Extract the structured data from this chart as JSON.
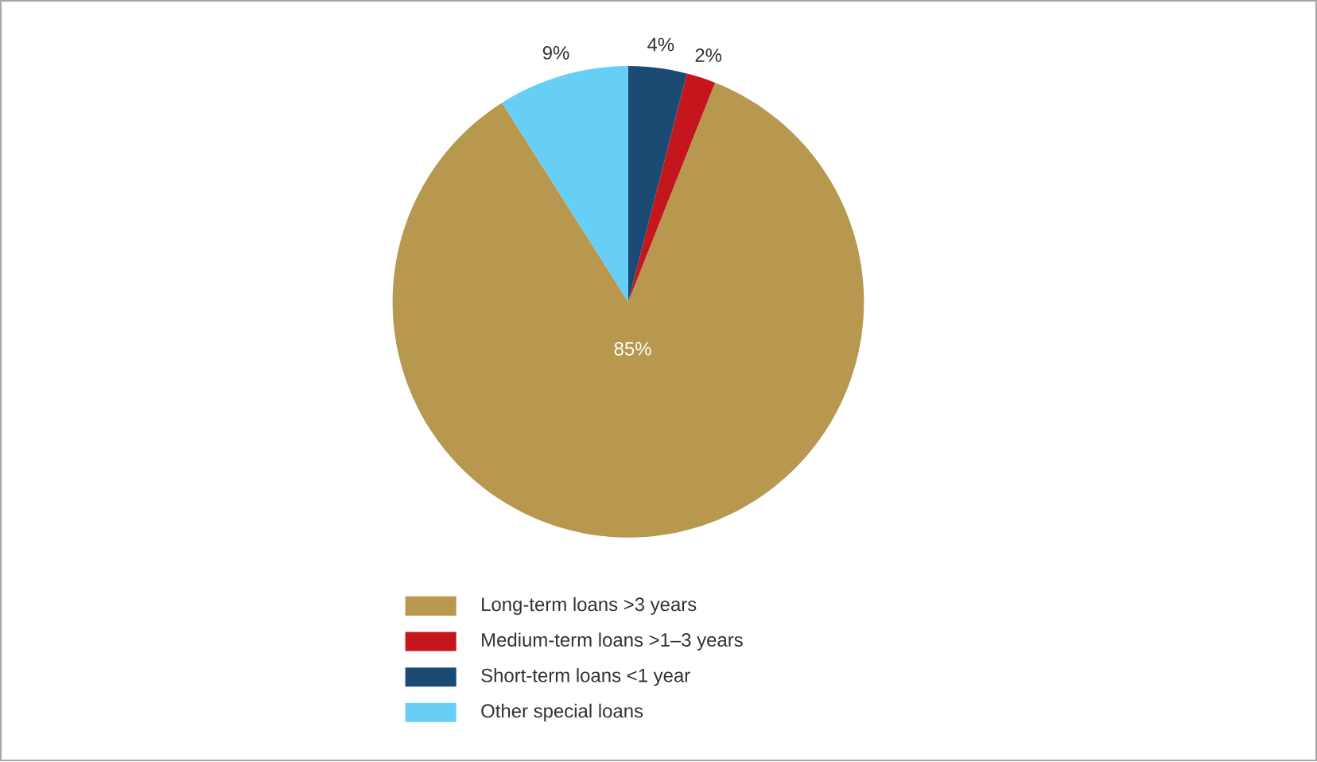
{
  "chart_data": {
    "type": "pie",
    "categories": [
      "Long-term loans >3 years",
      "Medium-term loans >1–3 years",
      "Short-term loans <1 year",
      "Other special loans"
    ],
    "values": [
      85,
      2,
      4,
      9
    ],
    "colors": [
      "#b8974f",
      "#c4161c",
      "#1b4a73",
      "#67cff5"
    ],
    "value_labels": [
      "85%",
      "2%",
      "4%",
      "9%"
    ],
    "legend": "bottom"
  }
}
